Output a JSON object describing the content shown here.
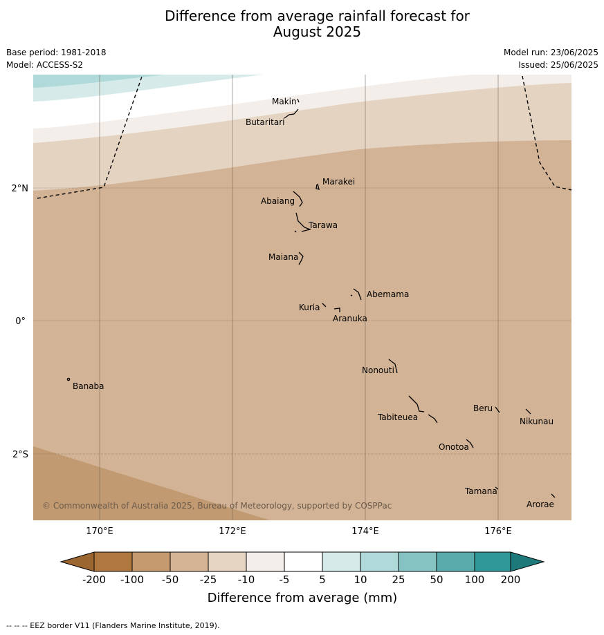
{
  "title_line1": "Difference from average rainfall forecast for",
  "title_line2": "August 2025",
  "base_period": "Base period: 1981-2018",
  "model": "Model: ACCESS-S2",
  "model_run": "Model run: 23/06/2025",
  "issued": "Issued: 25/06/2025",
  "lat_labels": [
    "2°N",
    "0°",
    "2°S"
  ],
  "lon_labels": [
    "170°E",
    "172°E",
    "174°E",
    "176°E"
  ],
  "places": {
    "makin": "Makin",
    "butaritari": "Butaritari",
    "marakei": "Marakei",
    "abaiang": "Abaiang",
    "tarawa": "Tarawa",
    "maiana": "Maiana",
    "abemama": "Abemama",
    "kuria": "Kuria",
    "aranuka": "Aranuka",
    "nonouti": "Nonouti",
    "banaba": "Banaba",
    "beru": "Beru",
    "nikunau": "Nikunau",
    "tabiteuea": "Tabiteuea",
    "onotoa": "Onotoa",
    "tamana": "Tamana",
    "arorae": "Arorae"
  },
  "copyright": "© Commonwealth of Australia 2025, Bureau of Meteorology, supported by COSPPac",
  "colorbar": {
    "labels": [
      "-200",
      "-100",
      "-50",
      "-25",
      "-10",
      "-5",
      "5",
      "10",
      "25",
      "50",
      "100",
      "200"
    ],
    "colors": [
      "#9c6630",
      "#ae7840",
      "#c49a6e",
      "#d4b494",
      "#e6d4c3",
      "#f3eeea",
      "#ffffff",
      "#d6eaea",
      "#b0dada",
      "#86c4c4",
      "#5aacac",
      "#2f9898",
      "#1e7a7a"
    ],
    "title": "Difference from average (mm)"
  },
  "footer": "--  --  -- EEZ border V11 (Flanders Marine Institute, 2019)."
}
